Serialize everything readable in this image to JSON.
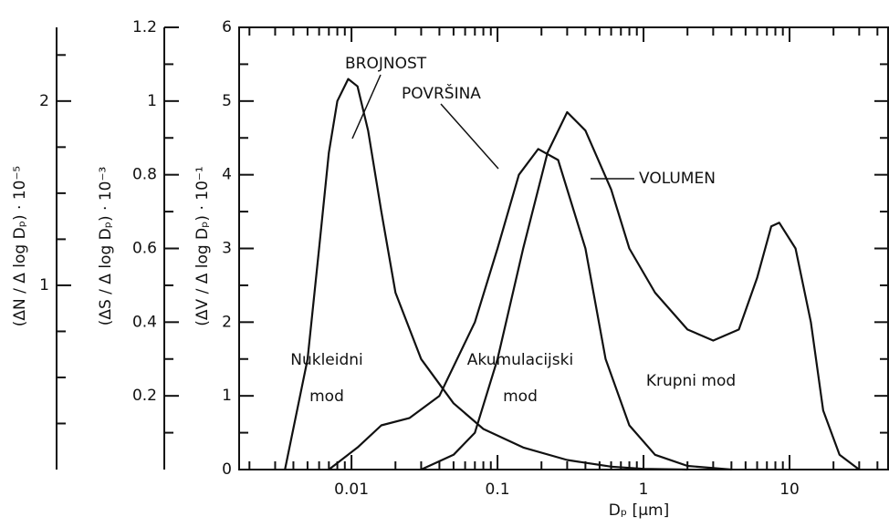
{
  "chart_data": {
    "type": "line",
    "x_label": "Dₚ [μm]",
    "xlim": [
      0.0017,
      48
    ],
    "log_x": true,
    "xticks": [
      {
        "value": 0.01,
        "label": "0.01"
      },
      {
        "value": 0.1,
        "label": "0.1"
      },
      1,
      10
    ],
    "xminorticks": [
      0.002,
      0.003,
      0.004,
      0.005,
      0.006,
      0.007,
      0.008,
      0.009,
      0.02,
      0.03,
      0.04,
      0.05,
      0.06,
      0.07,
      0.08,
      0.09,
      0.2,
      0.3,
      0.4,
      0.5,
      0.6,
      0.7,
      0.8,
      0.9,
      2,
      3,
      4,
      5,
      6,
      7,
      8,
      9,
      20,
      30,
      40
    ],
    "y_axes": [
      {
        "label": "(ΔN / Δ log Dₚ) · 10⁻⁵",
        "lim": [
          0,
          2.4
        ],
        "ticks": [
          1,
          2
        ],
        "minor_ticks": [
          0.25,
          0.5,
          0.75,
          1.25,
          1.5,
          1.75,
          2.25
        ]
      },
      {
        "label": "(ΔS / Δ log Dₚ) · 10⁻³",
        "lim": [
          0,
          1.2
        ],
        "ticks": [
          0.2,
          0.4,
          0.6,
          0.8,
          1,
          1.2
        ],
        "minor_ticks": [
          0.1,
          0.3,
          0.5,
          0.7,
          0.9,
          1.1
        ]
      },
      {
        "label": "(ΔV / Δ log Dₚ) · 10⁻¹",
        "lim": [
          0,
          6
        ],
        "ticks": [
          0,
          1,
          2,
          3,
          4,
          5,
          6
        ],
        "minor_ticks": [
          0.5,
          1.5,
          2.5,
          3.5,
          4.5,
          5.5
        ]
      }
    ],
    "series": [
      {
        "name": "BROJNOST",
        "color": "#111111",
        "x": [
          0.0035,
          0.005,
          0.006,
          0.007,
          0.008,
          0.0095,
          0.011,
          0.013,
          0.016,
          0.02,
          0.03,
          0.05,
          0.08,
          0.15,
          0.3,
          0.6,
          1,
          2
        ],
        "values": [
          0,
          1.5,
          3.0,
          4.3,
          5.0,
          5.3,
          5.2,
          4.6,
          3.5,
          2.4,
          1.5,
          0.9,
          0.55,
          0.3,
          0.13,
          0.04,
          0.01,
          0
        ]
      },
      {
        "name": "POVRŠINA",
        "color": "#111111",
        "x": [
          0.007,
          0.011,
          0.016,
          0.025,
          0.04,
          0.07,
          0.1,
          0.14,
          0.19,
          0.26,
          0.4,
          0.55,
          0.8,
          1.2,
          2,
          4
        ],
        "values": [
          0,
          0.3,
          0.6,
          0.7,
          1.0,
          2.0,
          3.0,
          4.0,
          4.35,
          4.2,
          3.0,
          1.5,
          0.6,
          0.2,
          0.05,
          0
        ]
      },
      {
        "name": "VOLUMEN",
        "color": "#111111",
        "x": [
          0.03,
          0.05,
          0.07,
          0.1,
          0.15,
          0.22,
          0.3,
          0.4,
          0.6,
          0.8,
          1.2,
          2,
          3,
          4.5,
          6,
          7.5,
          8.5,
          11,
          14,
          17,
          22,
          30
        ],
        "values": [
          0,
          0.2,
          0.5,
          1.5,
          3.0,
          4.3,
          4.85,
          4.6,
          3.8,
          3.0,
          2.4,
          1.9,
          1.75,
          1.9,
          2.6,
          3.3,
          3.35,
          3.0,
          2.0,
          0.8,
          0.2,
          0
        ]
      }
    ],
    "annotations": [
      {
        "lines": [
          "Nukleidni",
          "mod"
        ]
      },
      {
        "lines": [
          "Akumulacijski",
          "mod"
        ]
      },
      {
        "lines": [
          "Krupni mod"
        ]
      }
    ]
  }
}
